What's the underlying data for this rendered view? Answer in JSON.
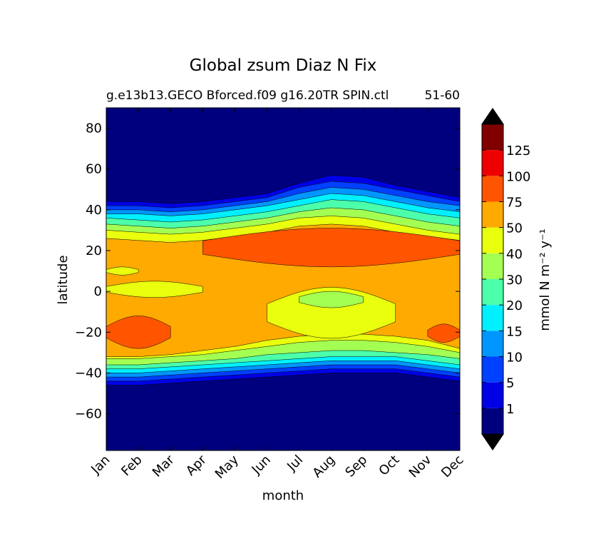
{
  "chart_data": {
    "type": "filled-contour",
    "title": "Global zsum Diaz N Fix",
    "subtitle": "g.e13b13.GECO Bforced.f09 g16.20TR SPIN.ctl",
    "subtitle_right": "51-60",
    "xlabel": "month",
    "ylabel": "latitude",
    "x_ticks": [
      "Jan",
      "Feb",
      "Mar",
      "Apr",
      "May",
      "Jun",
      "Jul",
      "Aug",
      "Sep",
      "Oct",
      "Nov",
      "Dec"
    ],
    "x_range": [
      0,
      11
    ],
    "y_ticks": [
      80,
      60,
      40,
      20,
      0,
      -20,
      -40,
      -60
    ],
    "y_range": [
      -78,
      90
    ],
    "colorbar": {
      "label": "mmol N m⁻² y⁻¹",
      "tick_labels": [
        "1",
        "5",
        "10",
        "15",
        "20",
        "30",
        "40",
        "50",
        "75",
        "100",
        "125"
      ],
      "colors": [
        "#00007f",
        "#0000e5",
        "#0040ff",
        "#0096ff",
        "#00f0ff",
        "#4bffab",
        "#a4ff53",
        "#e9ff0d",
        "#ffaa00",
        "#ff5500",
        "#ef0000",
        "#800000"
      ],
      "extend": "both",
      "under_color": "#000000",
      "over_color": "#000000"
    },
    "series": [
      {
        "name": "band-1",
        "level": 1,
        "upper": [
          44,
          44,
          43,
          44,
          46,
          48,
          53,
          57,
          56,
          52,
          49,
          46
        ],
        "lower": [
          -46,
          -46,
          -45,
          -44,
          -43,
          -42,
          -41,
          -40,
          -40,
          -40,
          -42,
          -44
        ]
      },
      {
        "name": "band-5",
        "level": 5,
        "upper": [
          42,
          42,
          41,
          42,
          44,
          46,
          51,
          54,
          53,
          50,
          47,
          44
        ],
        "lower": [
          -44,
          -44,
          -43,
          -42,
          -41,
          -40,
          -39,
          -38,
          -38,
          -38,
          -40,
          -42
        ]
      },
      {
        "name": "band-10",
        "level": 10,
        "upper": [
          40,
          40,
          39,
          40,
          42,
          44,
          48,
          51,
          50,
          47,
          44,
          42
        ],
        "lower": [
          -42,
          -42,
          -41,
          -40,
          -39,
          -38,
          -37,
          -36,
          -36,
          -36,
          -38,
          -40
        ]
      },
      {
        "name": "band-15",
        "level": 15,
        "upper": [
          38,
          38,
          37,
          38,
          40,
          42,
          45,
          48,
          47,
          44,
          41,
          39
        ],
        "lower": [
          -40,
          -40,
          -39,
          -38,
          -37,
          -36,
          -35,
          -34,
          -34,
          -34,
          -36,
          -38
        ]
      },
      {
        "name": "band-20",
        "level": 20,
        "upper": [
          36,
          35,
          34,
          35,
          37,
          39,
          42,
          45,
          44,
          41,
          38,
          36
        ],
        "lower": [
          -38,
          -38,
          -37,
          -36,
          -35,
          -34,
          -33,
          -32,
          -32,
          -32,
          -34,
          -36
        ]
      },
      {
        "name": "band-30",
        "level": 30,
        "upper": [
          33,
          32,
          31,
          32,
          34,
          36,
          39,
          41,
          40,
          37,
          34,
          32
        ],
        "lower": [
          -36,
          -36,
          -35,
          -34,
          -33,
          -31,
          -30,
          -29,
          -29,
          -30,
          -31,
          -33
        ]
      },
      {
        "name": "band-40",
        "level": 40,
        "upper": [
          30,
          29,
          28,
          29,
          31,
          33,
          36,
          37,
          36,
          33,
          30,
          28
        ],
        "lower": [
          -33,
          -33,
          -32,
          -31,
          -29,
          -27,
          -25,
          -24,
          -24,
          -25,
          -27,
          -30
        ]
      },
      {
        "name": "band-50",
        "level": 50,
        "upper": [
          26,
          25,
          24,
          25,
          27,
          29,
          32,
          33,
          32,
          29,
          27,
          25
        ],
        "lower": [
          -32,
          -32,
          -31,
          -29,
          -27,
          -24,
          -22,
          -21,
          -21,
          -22,
          -24,
          -28
        ]
      }
    ],
    "regions": [
      {
        "name": "band-75-north",
        "level": 75,
        "lat_range": [
          12,
          31
        ],
        "months": [
          "Apr",
          "Dec"
        ]
      },
      {
        "name": "band-40-south-tropics",
        "level": 40,
        "lat_range": [
          -23,
          2
        ],
        "months": [
          "Jun",
          "Oct"
        ]
      },
      {
        "name": "band-30-aug-patch",
        "level": 30,
        "lat_range": [
          -8,
          0
        ],
        "months": [
          "Jul",
          "Sep"
        ]
      },
      {
        "name": "band-40-west-equator",
        "level": 40,
        "lat_range": [
          -3,
          5
        ],
        "months": [
          "Jan",
          "Apr"
        ]
      },
      {
        "name": "band-40-jan-sliver",
        "level": 40,
        "lat_range": [
          8,
          12
        ],
        "months": [
          "Jan",
          "Feb"
        ]
      },
      {
        "name": "band-75-jan-south",
        "level": 75,
        "lat_range": [
          -28,
          -12
        ],
        "months": [
          "Jan",
          "Mar"
        ]
      },
      {
        "name": "band-75-dec-south",
        "level": 75,
        "lat_range": [
          -25,
          -16
        ],
        "months": [
          "Nov",
          "Dec"
        ]
      }
    ]
  }
}
